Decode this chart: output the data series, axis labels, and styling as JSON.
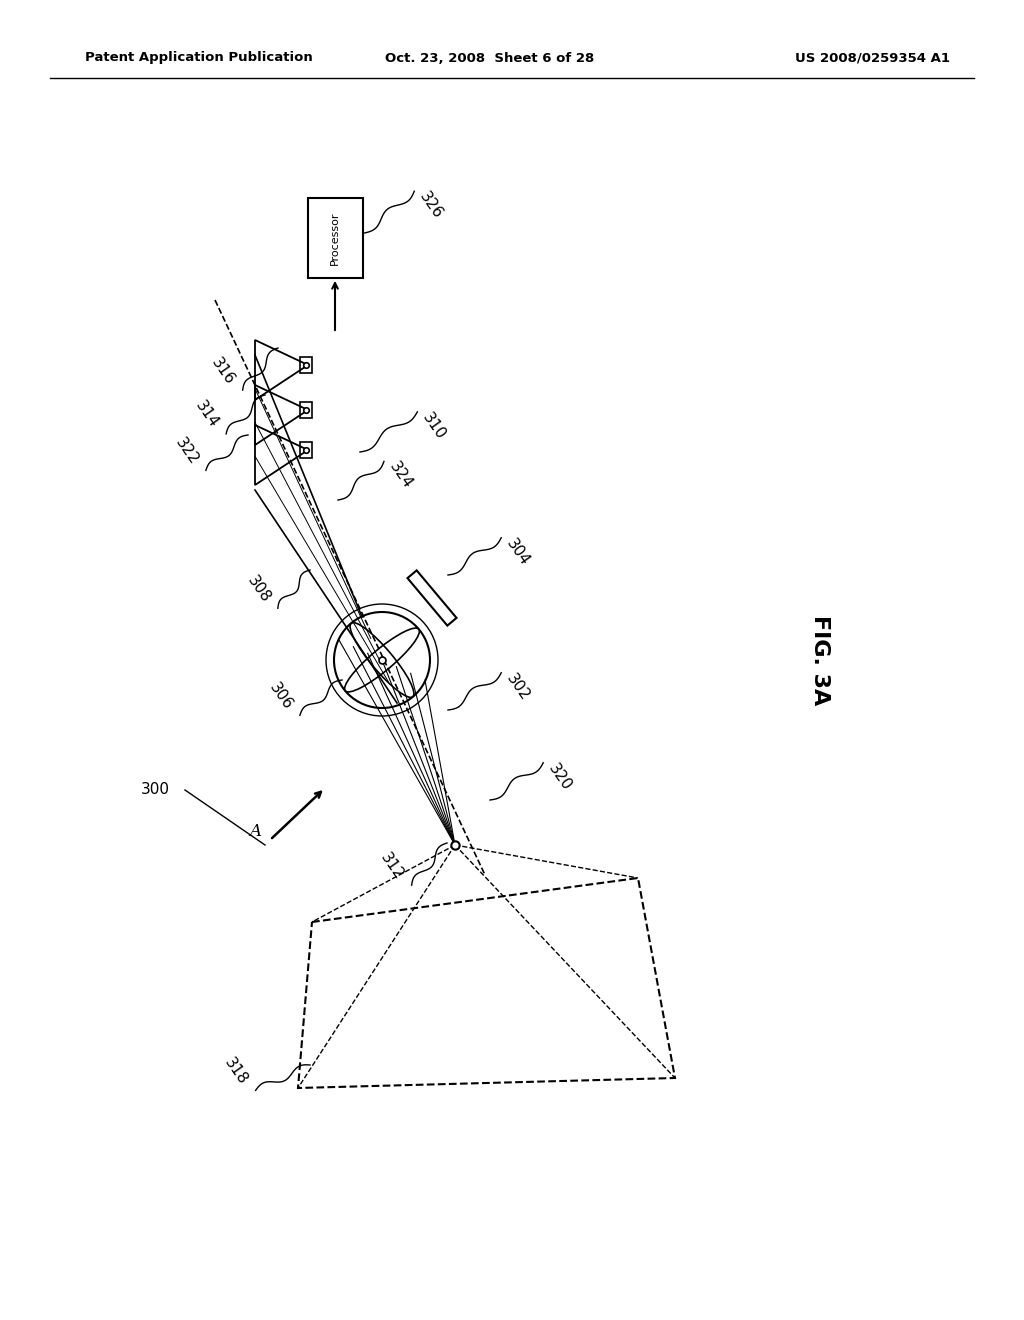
{
  "title_left": "Patent Application Publication",
  "title_center": "Oct. 23, 2008  Sheet 6 of 28",
  "title_right": "US 2008/0259354 A1",
  "fig_label": "FIG. 3A",
  "bg_color": "#ffffff",
  "line_color": "#000000",
  "label_300": "300",
  "label_302": "302",
  "label_304": "304",
  "label_306": "306",
  "label_308": "308",
  "label_310": "310",
  "label_312": "312",
  "label_314": "314",
  "label_316": "316",
  "label_318": "318",
  "label_320": "320",
  "label_322": "322",
  "label_324": "324",
  "label_326": "326",
  "label_A": "A",
  "processor_text": "Processor"
}
